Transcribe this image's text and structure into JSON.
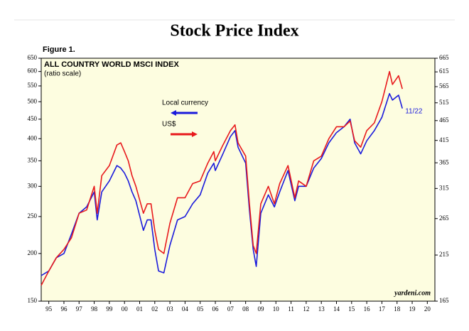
{
  "chart_data": {
    "type": "line",
    "title": "Stock Price Index",
    "figure_label": "Figure 1.",
    "subtitle": "ALL COUNTRY WORLD MSCI INDEX",
    "scale_note": "(ratio scale)",
    "end_label": "11/22",
    "source": "yardeni.com",
    "log_scale": true,
    "x": [
      1995.0,
      1995.5,
      1996.0,
      1996.5,
      1997.0,
      1997.5,
      1998.0,
      1998.5,
      1998.7,
      1999.0,
      1999.5,
      2000.0,
      2000.25,
      2000.5,
      2000.75,
      2001.0,
      2001.25,
      2001.75,
      2002.0,
      2002.25,
      2002.5,
      2002.75,
      2003.1,
      2003.5,
      2004.0,
      2004.5,
      2005.0,
      2005.5,
      2006.0,
      2006.4,
      2006.5,
      2007.0,
      2007.5,
      2007.8,
      2008.0,
      2008.5,
      2008.75,
      2009.0,
      2009.2,
      2009.5,
      2010.0,
      2010.4,
      2010.75,
      2011.3,
      2011.75,
      2012.0,
      2012.5,
      2013.0,
      2013.5,
      2014.0,
      2014.5,
      2015.0,
      2015.4,
      2015.7,
      2016.1,
      2016.5,
      2017.0,
      2017.5,
      2018.0,
      2018.2,
      2018.6,
      2018.85
    ],
    "series": [
      {
        "name": "Local currency",
        "color": "#1a1adc",
        "values": [
          175,
          180,
          195,
          200,
          225,
          255,
          265,
          290,
          245,
          290,
          310,
          340,
          335,
          325,
          310,
          290,
          275,
          230,
          245,
          245,
          205,
          180,
          178,
          210,
          245,
          250,
          270,
          285,
          325,
          345,
          330,
          365,
          405,
          420,
          380,
          345,
          260,
          205,
          185,
          255,
          285,
          265,
          290,
          330,
          275,
          300,
          300,
          335,
          355,
          390,
          415,
          430,
          450,
          390,
          365,
          395,
          420,
          455,
          525,
          505,
          520,
          480
        ]
      },
      {
        "name": "US$",
        "color": "#e8191c",
        "values": [
          165,
          180,
          195,
          205,
          220,
          255,
          260,
          300,
          255,
          320,
          340,
          385,
          390,
          370,
          350,
          320,
          300,
          255,
          270,
          270,
          230,
          205,
          200,
          240,
          280,
          280,
          305,
          310,
          345,
          370,
          350,
          385,
          420,
          435,
          390,
          360,
          270,
          210,
          200,
          270,
          300,
          270,
          305,
          340,
          280,
          310,
          300,
          350,
          360,
          400,
          430,
          430,
          445,
          395,
          380,
          420,
          440,
          500,
          600,
          555,
          585,
          540
        ]
      }
    ],
    "xlim": [
      1995,
      2021
    ],
    "xticks": [
      {
        "value": 1995.5,
        "label": "95"
      },
      {
        "value": 1996.5,
        "label": "96"
      },
      {
        "value": 1997.5,
        "label": "97"
      },
      {
        "value": 1998.5,
        "label": "98"
      },
      {
        "value": 1999.5,
        "label": "99"
      },
      {
        "value": 2000.5,
        "label": "00"
      },
      {
        "value": 2001.5,
        "label": "01"
      },
      {
        "value": 2002.5,
        "label": "02"
      },
      {
        "value": 2003.5,
        "label": "03"
      },
      {
        "value": 2004.5,
        "label": "04"
      },
      {
        "value": 2005.5,
        "label": "05"
      },
      {
        "value": 2006.5,
        "label": "06"
      },
      {
        "value": 2007.5,
        "label": "07"
      },
      {
        "value": 2008.5,
        "label": "08"
      },
      {
        "value": 2009.5,
        "label": "09"
      },
      {
        "value": 2010.5,
        "label": "10"
      },
      {
        "value": 2011.5,
        "label": "11"
      },
      {
        "value": 2012.5,
        "label": "12"
      },
      {
        "value": 2013.5,
        "label": "13"
      },
      {
        "value": 2014.5,
        "label": "14"
      },
      {
        "value": 2015.5,
        "label": "15"
      },
      {
        "value": 2016.5,
        "label": "16"
      },
      {
        "value": 2017.5,
        "label": "17"
      },
      {
        "value": 2018.5,
        "label": "18"
      },
      {
        "value": 2019.5,
        "label": "19"
      },
      {
        "value": 2020.5,
        "label": "20"
      }
    ],
    "ylim": [
      150,
      650
    ],
    "yticks": [
      150,
      200,
      250,
      300,
      350,
      400,
      450,
      500,
      550,
      600,
      650
    ],
    "y2lim": [
      165,
      665
    ],
    "y2ticks": [
      165,
      215,
      265,
      315,
      365,
      415,
      465,
      515,
      565,
      615,
      665
    ]
  }
}
